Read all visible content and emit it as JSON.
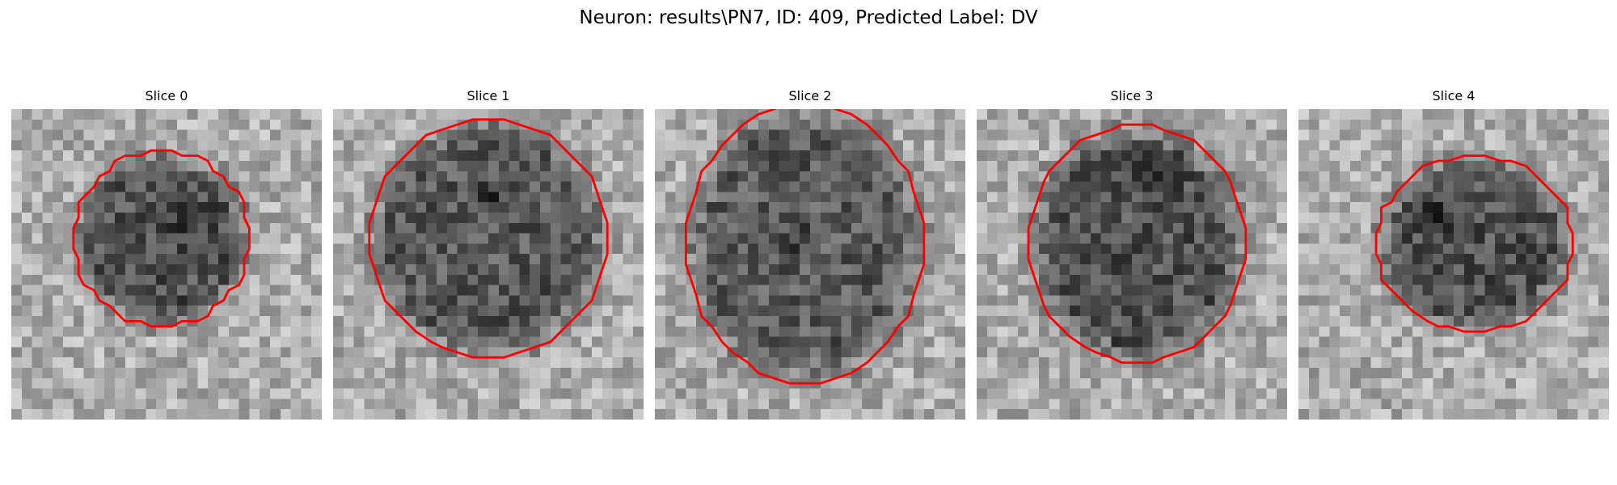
{
  "figure": {
    "title": "Neuron: results\\PN7, ID: 409, Predicted Label: DV"
  },
  "colors": {
    "contour": "#ff0000",
    "cell_low": "#000000",
    "cell_high": "#ffffff"
  },
  "panels": [
    {
      "title": "Slice 0",
      "grid_size": 30,
      "center": [
        14.5,
        12.5
      ],
      "radii": [
        8.5,
        8.5
      ],
      "darkness": 0.55,
      "dark_spot": [
        17,
        11
      ]
    },
    {
      "title": "Slice 1",
      "grid_size": 30,
      "center": [
        15.0,
        12.5
      ],
      "radii": [
        11.5,
        11.5
      ],
      "darkness": 0.5,
      "dark_spot": [
        15,
        8
      ]
    },
    {
      "title": "Slice 2",
      "grid_size": 30,
      "center": [
        14.5,
        13.0
      ],
      "radii": [
        11.5,
        13.5
      ],
      "darkness": 0.48,
      "dark_spot": [
        13,
        12
      ]
    },
    {
      "title": "Slice 3",
      "grid_size": 30,
      "center": [
        15.5,
        13.0
      ],
      "radii": [
        10.5,
        11.5
      ],
      "darkness": 0.55,
      "dark_spot": [
        17,
        7
      ]
    },
    {
      "title": "Slice 4",
      "grid_size": 30,
      "center": [
        17.0,
        13.0
      ],
      "radii": [
        9.5,
        8.5
      ],
      "darkness": 0.55,
      "dark_spot": [
        13,
        10
      ]
    }
  ]
}
